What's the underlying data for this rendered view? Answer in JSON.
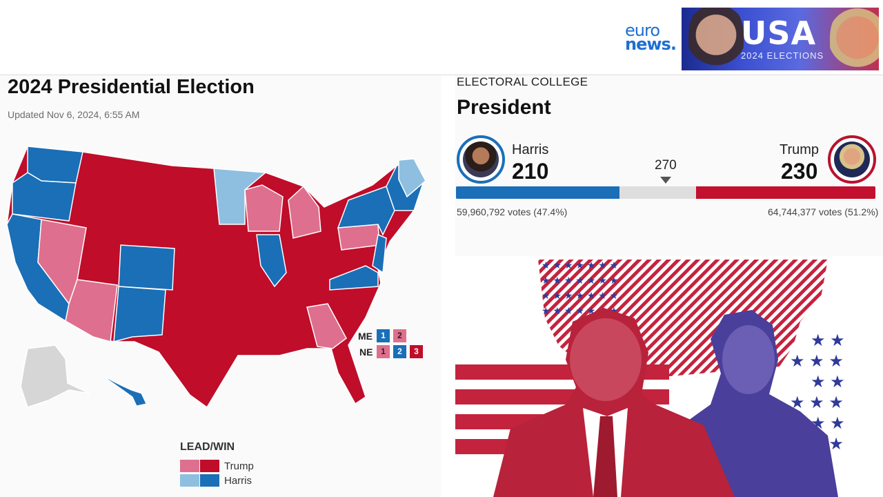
{
  "brand": {
    "logo_line1": "euro",
    "logo_line2": "news.",
    "banner_title": "USA",
    "banner_subtitle": "2024 ELECTIONS"
  },
  "map_panel": {
    "title": "2024 Presidential Election",
    "updated": "Updated Nov 6, 2024, 6:55 AM",
    "legend_title": "LEAD/WIN",
    "legend_items": [
      {
        "label": "Trump",
        "lead_color": "#df6f8e",
        "win_color": "#bf0d2a"
      },
      {
        "label": "Harris",
        "lead_color": "#8fbfe0",
        "win_color": "#1a6fb7"
      }
    ],
    "split_states": {
      "me_label": "ME",
      "me_districts": [
        "1",
        "2"
      ],
      "ne_label": "NE",
      "ne_districts": [
        "1",
        "2",
        "3"
      ]
    },
    "colors": {
      "trump_win": "#bf0d2a",
      "trump_lead": "#df6f8e",
      "harris_win": "#1a6fb7",
      "harris_lead": "#8fbfe0",
      "no_result": "#d6d6d6"
    }
  },
  "electoral": {
    "section_label": "ELECTORAL COLLEGE",
    "heading": "President",
    "threshold": "270",
    "harris": {
      "name": "Harris",
      "electoral_votes": "210",
      "popular": "59,960,792 votes (47.4%)",
      "color": "#1b6fb8"
    },
    "trump": {
      "name": "Trump",
      "electoral_votes": "230",
      "popular": "64,744,377 votes (51.2%)",
      "color": "#c2102e"
    },
    "total_electoral_votes": 538,
    "harris_ev": 210,
    "trump_ev": 230
  }
}
